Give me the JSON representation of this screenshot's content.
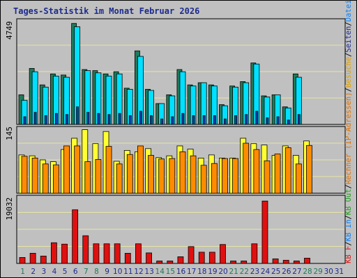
{
  "title": "Tages-Statistik im Monat Februar 2026",
  "colors": {
    "panel_bg": "#c0c0c0",
    "gridline": "#e6e6a0",
    "anfragen": "#1f7a5a",
    "dateien": "#00e0ff",
    "seiten": "#1040b0",
    "besuche": "#ffff33",
    "rechner": "#ff8c00",
    "kb": "#e01010",
    "weekend_day": "#1f7a5a",
    "weekday_day": "#1c2a8c"
  },
  "legend_right": [
    {
      "text": "Anfragen",
      "color": "#1f7a5a"
    },
    {
      "text": "/",
      "color": "#000000"
    },
    {
      "text": "Dateien",
      "color": "#0080ff"
    },
    {
      "text": "/",
      "color": "#000000"
    },
    {
      "text": "Seiten",
      "color": "#1c2a8c"
    },
    {
      "text": "/",
      "color": "#000000"
    },
    {
      "text": "Besuche",
      "color": "#e0a000"
    },
    {
      "text": "/",
      "color": "#000000"
    },
    {
      "text": "Rechner (IP-Adressen)",
      "color": "#e07000"
    },
    {
      "text": "/",
      "color": "#000000"
    },
    {
      "text": "KB Out",
      "color": "#20a020"
    },
    {
      "text": "/",
      "color": "#000000"
    },
    {
      "text": "KB In",
      "color": "#0080ff"
    },
    {
      "text": "/",
      "color": "#000000"
    },
    {
      "text": "KB F",
      "color": "#e01010"
    }
  ],
  "chart_data": [
    {
      "type": "bar",
      "panel": "top",
      "y_max_label": "4749",
      "ylim": [
        0,
        4749
      ],
      "grid": true,
      "categories": [
        "1",
        "2",
        "3",
        "4",
        "5",
        "6",
        "7",
        "8",
        "9",
        "10",
        "11",
        "12",
        "13",
        "14",
        "15",
        "16",
        "17",
        "18",
        "19",
        "20",
        "21",
        "22",
        "23",
        "24",
        "25",
        "26",
        "27",
        "28",
        "29",
        "30",
        "31"
      ],
      "series": [
        {
          "name": "Anfragen",
          "values": [
            1350,
            2550,
            1800,
            2300,
            2250,
            4600,
            2500,
            2450,
            2300,
            2400,
            1650,
            3350,
            1600,
            950,
            1350,
            2500,
            1800,
            1900,
            1800,
            900,
            1750,
            1950,
            2800,
            1300,
            1350,
            800,
            2300,
            0,
            0,
            0,
            0
          ]
        },
        {
          "name": "Dateien",
          "values": [
            1100,
            2400,
            1700,
            2200,
            2150,
            4450,
            2450,
            2350,
            2200,
            2300,
            1600,
            3100,
            1550,
            950,
            1300,
            2400,
            1750,
            1900,
            1750,
            850,
            1700,
            1900,
            2750,
            1250,
            1350,
            750,
            2150,
            0,
            0,
            0,
            0
          ]
        },
        {
          "name": "Seiten",
          "values": [
            350,
            550,
            400,
            500,
            450,
            800,
            550,
            500,
            450,
            500,
            400,
            600,
            400,
            250,
            350,
            500,
            400,
            400,
            400,
            250,
            400,
            450,
            600,
            300,
            350,
            200,
            450,
            0,
            0,
            0,
            0
          ]
        }
      ]
    },
    {
      "type": "bar",
      "panel": "middle",
      "y_max_label": "145",
      "ylim": [
        0,
        145
      ],
      "grid": true,
      "categories": [
        "1",
        "2",
        "3",
        "4",
        "5",
        "6",
        "7",
        "8",
        "9",
        "10",
        "11",
        "12",
        "13",
        "14",
        "15",
        "16",
        "17",
        "18",
        "19",
        "20",
        "21",
        "22",
        "23",
        "24",
        "25",
        "26",
        "27",
        "28",
        "29",
        "30",
        "31"
      ],
      "series": [
        {
          "name": "Besuche",
          "values": [
            85,
            83,
            74,
            70,
            97,
            122,
            141,
            110,
            137,
            71,
            95,
            92,
            99,
            79,
            83,
            105,
            98,
            78,
            85,
            78,
            78,
            122,
            110,
            107,
            84,
            105,
            84,
            116,
            0,
            0,
            0
          ]
        },
        {
          "name": "Rechner",
          "values": [
            82,
            78,
            65,
            63,
            105,
            105,
            70,
            75,
            104,
            65,
            86,
            105,
            84,
            76,
            77,
            92,
            83,
            62,
            66,
            77,
            77,
            111,
            97,
            72,
            87,
            101,
            65,
            106,
            0,
            0,
            0
          ]
        }
      ]
    },
    {
      "type": "bar",
      "panel": "bottom",
      "y_max_label": "19032",
      "ylim": [
        0,
        19032
      ],
      "grid": true,
      "categories": [
        "1",
        "2",
        "3",
        "4",
        "5",
        "6",
        "7",
        "8",
        "9",
        "10",
        "11",
        "12",
        "13",
        "14",
        "15",
        "16",
        "17",
        "18",
        "19",
        "20",
        "21",
        "22",
        "23",
        "24",
        "25",
        "26",
        "27",
        "28",
        "29",
        "30",
        "31"
      ],
      "series": [
        {
          "name": "KB F",
          "values": [
            1700,
            2900,
            2100,
            5900,
            5500,
            15300,
            7900,
            5600,
            5600,
            5600,
            2900,
            5600,
            3000,
            700,
            700,
            1900,
            4800,
            3200,
            3200,
            5400,
            700,
            700,
            5600,
            17800,
            1300,
            900,
            700,
            1500,
            0,
            0,
            0
          ]
        }
      ]
    }
  ],
  "x_axis": {
    "labels": [
      "1",
      "2",
      "3",
      "4",
      "5",
      "6",
      "7",
      "8",
      "9",
      "10",
      "11",
      "12",
      "13",
      "14",
      "15",
      "16",
      "17",
      "18",
      "19",
      "20",
      "21",
      "22",
      "23",
      "24",
      "25",
      "26",
      "27",
      "28",
      "29",
      "30",
      "31"
    ],
    "weekend_days": [
      "1",
      "7",
      "8",
      "14",
      "15",
      "21",
      "22",
      "28",
      "29"
    ]
  }
}
